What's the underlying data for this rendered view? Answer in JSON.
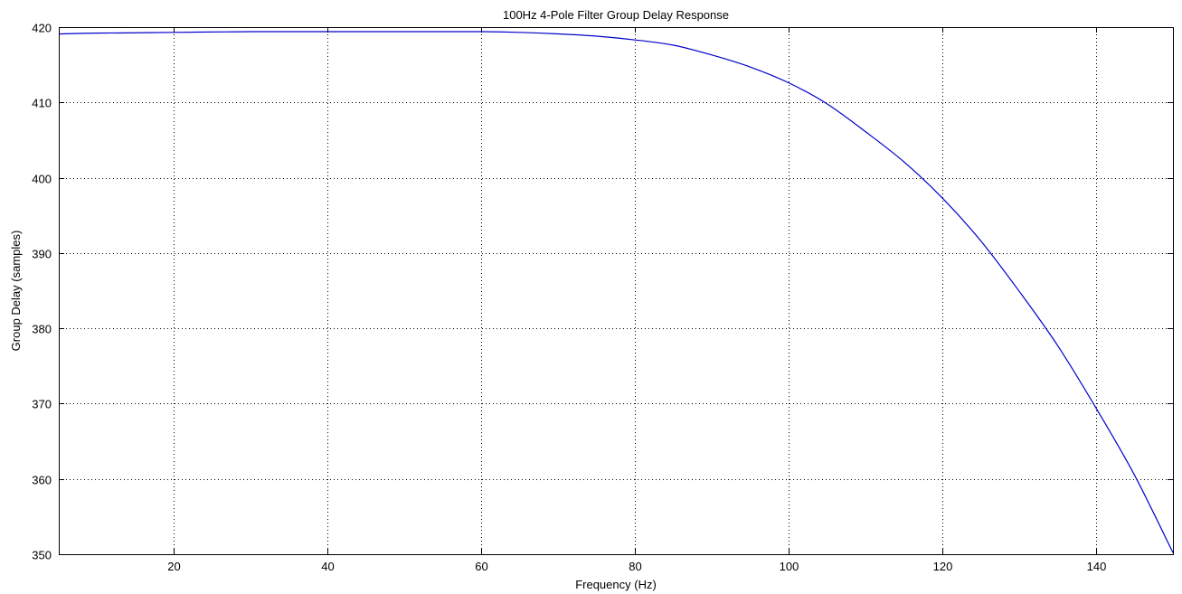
{
  "chart_data": {
    "type": "line",
    "title": "100Hz 4-Pole Filter Group Delay Response",
    "xlabel": "Frequency (Hz)",
    "ylabel": "Group Delay (samples)",
    "xlim": [
      5,
      150
    ],
    "ylim": [
      350,
      420
    ],
    "xticks": [
      20,
      40,
      60,
      80,
      100,
      120,
      140
    ],
    "yticks": [
      350,
      360,
      370,
      380,
      390,
      400,
      410,
      420
    ],
    "grid": true,
    "series": [
      {
        "color": "#0000cc",
        "x": [
          5,
          10,
          20,
          30,
          40,
          50,
          60,
          65,
          70,
          75,
          80,
          85,
          90,
          95,
          100,
          105,
          110,
          115,
          120,
          125,
          130,
          135,
          140,
          145,
          150
        ],
        "y": [
          419.1,
          419.2,
          419.3,
          419.4,
          419.4,
          419.4,
          419.4,
          419.3,
          419.1,
          418.8,
          418.3,
          417.6,
          416.3,
          414.7,
          412.6,
          409.8,
          406.1,
          402.1,
          397.3,
          391.6,
          384.9,
          377.7,
          369.4,
          360.5,
          350.2
        ]
      }
    ]
  }
}
